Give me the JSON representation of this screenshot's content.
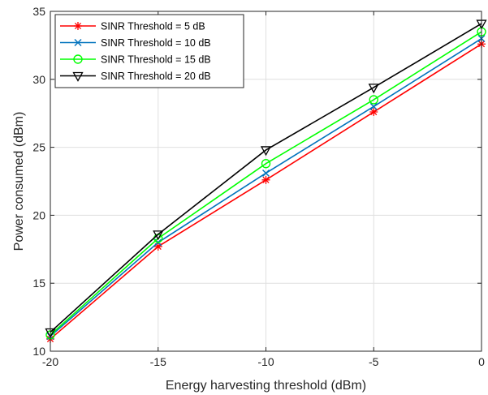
{
  "chart_data": {
    "type": "line",
    "xlabel": "Energy harvesting threshold (dBm)",
    "ylabel": "Power consumed (dBm)",
    "xlim": [
      -20,
      0
    ],
    "ylim": [
      10,
      35
    ],
    "xticks": [
      -20,
      -15,
      -10,
      -5,
      0
    ],
    "yticks": [
      10,
      15,
      20,
      25,
      30,
      35
    ],
    "grid": true,
    "legend_position": "top-left",
    "x": [
      -20,
      -15,
      -10,
      -5,
      0
    ],
    "series": [
      {
        "name": "SINR Threshold = 5 dB",
        "color": "#ff0000",
        "marker": "asterisk",
        "values": [
          10.9,
          17.7,
          22.6,
          27.6,
          32.6
        ]
      },
      {
        "name": "SINR Threshold = 10 dB",
        "color": "#0072bd",
        "marker": "x",
        "values": [
          11.1,
          18.0,
          23.1,
          28.0,
          33.0
        ]
      },
      {
        "name": "SINR Threshold = 15 dB",
        "color": "#00ff00",
        "marker": "circle",
        "values": [
          11.2,
          18.3,
          23.8,
          28.5,
          33.5
        ]
      },
      {
        "name": "SINR Threshold = 20 dB",
        "color": "#000000",
        "marker": "triangle-down",
        "values": [
          11.4,
          18.6,
          24.8,
          29.4,
          34.1
        ]
      }
    ]
  }
}
